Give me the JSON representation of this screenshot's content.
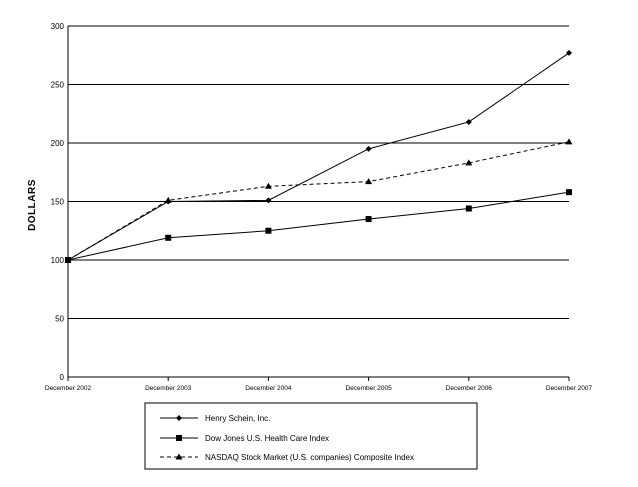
{
  "chart_data": {
    "type": "line",
    "title": "",
    "xlabel": "",
    "ylabel": "DOLLARS",
    "ylim": [
      0,
      300
    ],
    "yticks": [
      0,
      50,
      100,
      150,
      200,
      250,
      300
    ],
    "grid": "horizontal",
    "legend_position": "bottom",
    "categories": [
      "December 2002",
      "December 2003",
      "December 2004",
      "December 2005",
      "December 2006",
      "December 2007"
    ],
    "series": [
      {
        "name": "Henry Schein, Inc.",
        "marker": "diamond",
        "line": "solid",
        "values": [
          100,
          150,
          151,
          195,
          218,
          277
        ]
      },
      {
        "name": "Dow Jones U.S. Health Care Index",
        "marker": "square",
        "line": "solid",
        "values": [
          100,
          119,
          125,
          135,
          144,
          158
        ]
      },
      {
        "name": "NASDAQ Stock Market (U.S. companies) Composite Index",
        "marker": "triangle",
        "line": "dashed",
        "values": [
          100,
          151,
          163,
          167,
          183,
          201
        ]
      }
    ]
  },
  "colors": {
    "line": "#000000",
    "background": "#ffffff"
  }
}
